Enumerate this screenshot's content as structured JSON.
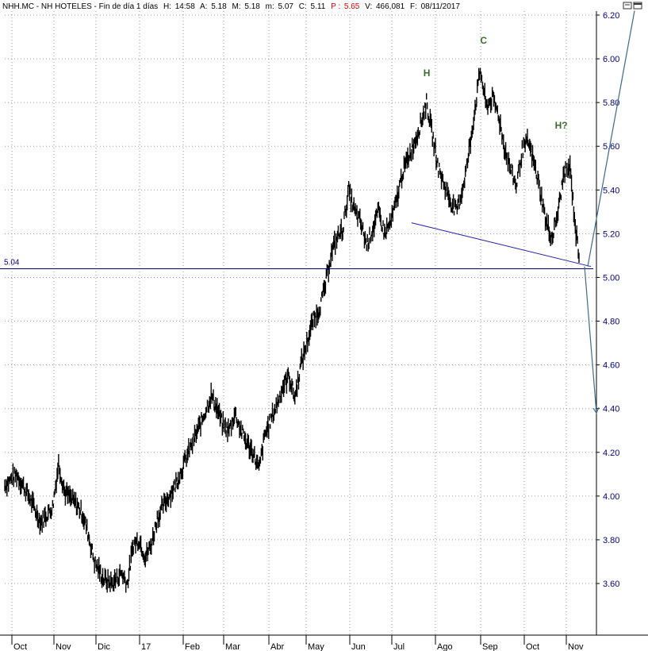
{
  "header": {
    "symbol": "NHH.MC - NH HOTELES - Fin de día 1 días",
    "h_label": "H:",
    "h_value": "14:58",
    "a_label": "A:",
    "a_value": "5.18",
    "M_label": "M:",
    "M_value": "5.18",
    "m_label": "m:",
    "m_value": "5.07",
    "c_label": "C:",
    "c_value": "5.11",
    "p_label": "P :",
    "p_value": "5.65",
    "v_label": "V:",
    "v_value": "466,081",
    "f_label": "F:",
    "f_value": "08/11/2017"
  },
  "colors": {
    "background": "#ffffff",
    "grid": "#9a9a9a",
    "price_bars": "#000000",
    "axis_text": "#000080",
    "support_line": "#00008b",
    "trend_line": "#1f1fa8",
    "projection_arrow": "#3e6b8a",
    "pattern_label": "#3d6b2b",
    "header_red": "#e00000"
  },
  "window_controls": [
    "restore-icon",
    "maximize-icon"
  ],
  "chart_data": {
    "type": "ohlc",
    "title": "NHH.MC - NH HOTELES",
    "ylim": [
      3.5,
      6.22
    ],
    "y_ticks": [
      "6.20",
      "6.00",
      "5.80",
      "5.60",
      "5.40",
      "5.20",
      "5.00",
      "4.80",
      "4.60",
      "4.40",
      "4.20",
      "4.00",
      "3.80",
      "3.60"
    ],
    "x_ticks": [
      "Oct",
      "Nov",
      "Dic",
      "17",
      "Feb",
      "Mar",
      "Abr",
      "May",
      "Jun",
      "Jul",
      "Ago",
      "Sep",
      "Oct",
      "Nov"
    ],
    "grid": true,
    "series_path": [
      [
        0,
        4.05
      ],
      [
        4,
        4.1
      ],
      [
        8,
        4.0
      ],
      [
        12,
        3.88
      ],
      [
        16,
        3.95
      ],
      [
        18,
        4.15
      ],
      [
        20,
        4.02
      ],
      [
        24,
        3.96
      ],
      [
        26,
        3.92
      ],
      [
        28,
        3.82
      ],
      [
        30,
        3.7
      ],
      [
        33,
        3.62
      ],
      [
        36,
        3.6
      ],
      [
        39,
        3.65
      ],
      [
        41,
        3.6
      ],
      [
        43,
        3.78
      ],
      [
        45,
        3.8
      ],
      [
        47,
        3.72
      ],
      [
        49,
        3.78
      ],
      [
        51,
        3.9
      ],
      [
        54,
        3.98
      ],
      [
        57,
        4.05
      ],
      [
        60,
        4.15
      ],
      [
        63,
        4.25
      ],
      [
        66,
        4.35
      ],
      [
        69,
        4.46
      ],
      [
        71,
        4.4
      ],
      [
        73,
        4.32
      ],
      [
        75,
        4.3
      ],
      [
        77,
        4.38
      ],
      [
        79,
        4.3
      ],
      [
        81,
        4.24
      ],
      [
        83,
        4.2
      ],
      [
        85,
        4.12
      ],
      [
        87,
        4.28
      ],
      [
        89,
        4.35
      ],
      [
        91,
        4.42
      ],
      [
        93,
        4.5
      ],
      [
        95,
        4.55
      ],
      [
        97,
        4.45
      ],
      [
        99,
        4.6
      ],
      [
        101,
        4.7
      ],
      [
        103,
        4.8
      ],
      [
        105,
        4.85
      ],
      [
        107,
        4.95
      ],
      [
        109,
        5.1
      ],
      [
        111,
        5.18
      ],
      [
        113,
        5.22
      ],
      [
        115,
        5.4
      ],
      [
        117,
        5.3
      ],
      [
        119,
        5.25
      ],
      [
        121,
        5.15
      ],
      [
        123,
        5.22
      ],
      [
        125,
        5.3
      ],
      [
        127,
        5.2
      ],
      [
        129,
        5.25
      ],
      [
        131,
        5.35
      ],
      [
        133,
        5.48
      ],
      [
        135,
        5.55
      ],
      [
        137,
        5.62
      ],
      [
        139,
        5.7
      ],
      [
        141,
        5.8
      ],
      [
        143,
        5.65
      ],
      [
        145,
        5.5
      ],
      [
        147,
        5.42
      ],
      [
        149,
        5.35
      ],
      [
        151,
        5.3
      ],
      [
        153,
        5.4
      ],
      [
        155,
        5.55
      ],
      [
        157,
        5.75
      ],
      [
        159,
        5.95
      ],
      [
        161,
        5.78
      ],
      [
        163,
        5.82
      ],
      [
        165,
        5.75
      ],
      [
        167,
        5.6
      ],
      [
        169,
        5.5
      ],
      [
        171,
        5.42
      ],
      [
        173,
        5.58
      ],
      [
        175,
        5.62
      ],
      [
        177,
        5.52
      ],
      [
        179,
        5.4
      ],
      [
        181,
        5.25
      ],
      [
        183,
        5.18
      ],
      [
        185,
        5.3
      ],
      [
        187,
        5.48
      ],
      [
        189,
        5.5
      ],
      [
        191,
        5.2
      ],
      [
        192,
        5.11
      ]
    ],
    "support_level": 5.04,
    "support_label": "5.04",
    "neckline": {
      "start": [
        136,
        5.25
      ],
      "end": [
        197,
        5.05
      ]
    },
    "projection_up": [
      197,
      6.22
    ],
    "projection_down": [
      197,
      4.38
    ],
    "annotations": [
      {
        "label": "H",
        "day": 141,
        "value": 5.92
      },
      {
        "label": "C",
        "day": 160,
        "value": 6.07
      },
      {
        "label": "H?",
        "day": 185,
        "value": 5.68
      }
    ]
  }
}
